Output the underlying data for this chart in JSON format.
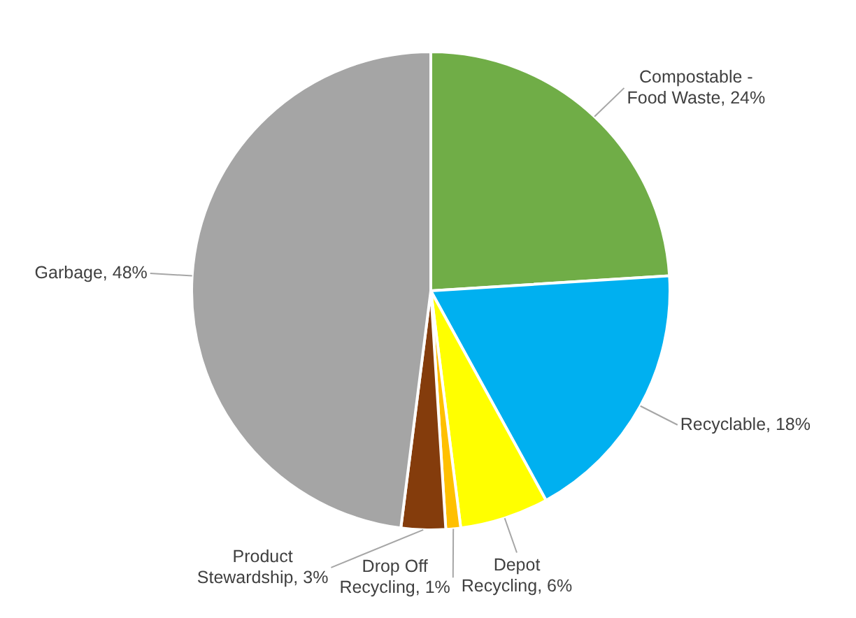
{
  "chart_data": {
    "type": "pie",
    "categories": [
      "Compostable - Food Waste",
      "Recyclable",
      "Depot Recycling",
      "Drop Off Recycling",
      "Product Stewardship",
      "Garbage"
    ],
    "values": [
      24,
      18,
      6,
      1,
      3,
      48
    ],
    "colors": [
      "#70ad47",
      "#00b0f0",
      "#ffff00",
      "#ffc000",
      "#843c0c",
      "#a5a5a5"
    ],
    "value_labels": [
      "24%",
      "18%",
      "6%",
      "1%",
      "3%",
      "48%"
    ],
    "legend": false
  }
}
